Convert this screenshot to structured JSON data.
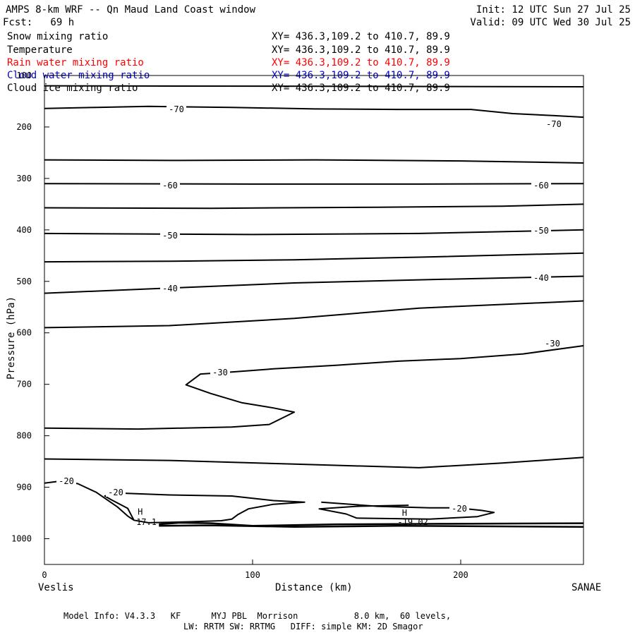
{
  "header": {
    "title": "AMPS 8-km WRF -- Qn Maud Land Coast window",
    "fcst": "Fcst:   69 h",
    "init": "Init: 12 UTC Sun 27 Jul 25",
    "valid": "Valid: 09 UTC Wed 30 Jul 25"
  },
  "fields": [
    {
      "name": "Snow mixing ratio",
      "xy": "XY= 436.3,109.2 to 410.7, 89.9",
      "color": "#000000"
    },
    {
      "name": "Temperature",
      "xy": "XY= 436.3,109.2 to 410.7, 89.9",
      "color": "#000000"
    },
    {
      "name": "Rain water mixing ratio",
      "xy": "XY= 436.3,109.2 to 410.7, 89.9",
      "color": "#ff0000"
    },
    {
      "name": "Cloud water mixing ratio",
      "xy": "XY= 436.3,109.2 to 410.7, 89.9",
      "color": "#0000cc"
    },
    {
      "name": "Cloud ice mixing ratio",
      "xy": "XY= 436.3,109.2 to 410.7, 89.9",
      "color": "#000000"
    }
  ],
  "footer": {
    "line1": "Model Info: V4.3.3   KF      MYJ PBL  Morrison           8.0 km,  60 levels,",
    "line2": "LW: RRTM SW: RRTMG   DIFF: simple KM: 2D Smagor"
  },
  "chart_data": {
    "type": "line",
    "xlabel": "Distance (km)",
    "ylabel": "Pressure (hPa)",
    "xlim": [
      0,
      259
    ],
    "ylim": [
      1050,
      100
    ],
    "x_ticks": [
      0,
      100,
      200
    ],
    "y_ticks": [
      100,
      200,
      300,
      400,
      500,
      600,
      700,
      800,
      900,
      1000
    ],
    "x_endpoints": {
      "left": "Veslis",
      "right": "SANAE"
    },
    "contours": [
      {
        "label": "",
        "points": [
          [
            0,
            120
          ],
          [
            259,
            122
          ]
        ]
      },
      {
        "label": "-70",
        "points": [
          [
            0,
            164
          ],
          [
            25,
            162
          ],
          [
            50,
            160
          ],
          [
            90,
            162
          ],
          [
            130,
            165
          ],
          [
            170,
            166
          ],
          [
            205,
            166
          ],
          [
            225,
            174
          ],
          [
            245,
            178
          ],
          [
            259,
            181
          ]
        ]
      },
      {
        "label": "",
        "points": [
          [
            0,
            264
          ],
          [
            60,
            265
          ],
          [
            130,
            264
          ],
          [
            200,
            266
          ],
          [
            259,
            270
          ]
        ]
      },
      {
        "label": "-60",
        "points": [
          [
            0,
            310
          ],
          [
            100,
            311
          ],
          [
            180,
            311
          ],
          [
            259,
            310
          ]
        ]
      },
      {
        "label": "",
        "points": [
          [
            0,
            357
          ],
          [
            80,
            358
          ],
          [
            160,
            356
          ],
          [
            220,
            354
          ],
          [
            259,
            350
          ]
        ]
      },
      {
        "label": "-50",
        "points": [
          [
            0,
            407
          ],
          [
            100,
            409
          ],
          [
            180,
            407
          ],
          [
            259,
            400
          ]
        ]
      },
      {
        "label": "",
        "points": [
          [
            0,
            462
          ],
          [
            60,
            461
          ],
          [
            120,
            458
          ],
          [
            180,
            453
          ],
          [
            259,
            445
          ]
        ]
      },
      {
        "label": "-40",
        "points": [
          [
            0,
            523
          ],
          [
            60,
            513
          ],
          [
            120,
            503
          ],
          [
            180,
            497
          ],
          [
            259,
            490
          ]
        ]
      },
      {
        "label": "",
        "points": [
          [
            0,
            590
          ],
          [
            60,
            586
          ],
          [
            120,
            572
          ],
          [
            180,
            552
          ],
          [
            259,
            538
          ]
        ]
      },
      {
        "label": "-30",
        "points": [
          [
            0,
            785
          ],
          [
            45,
            787
          ],
          [
            90,
            783
          ],
          [
            108,
            778
          ],
          [
            120,
            754
          ],
          [
            110,
            746
          ],
          [
            95,
            736
          ],
          [
            80,
            718
          ],
          [
            68,
            701
          ],
          [
            75,
            680
          ],
          [
            90,
            676
          ],
          [
            110,
            670
          ],
          [
            140,
            663
          ],
          [
            170,
            655
          ],
          [
            200,
            650
          ],
          [
            230,
            641
          ],
          [
            259,
            625
          ]
        ]
      },
      {
        "label": "",
        "points": [
          [
            0,
            845
          ],
          [
            60,
            848
          ],
          [
            120,
            855
          ],
          [
            180,
            862
          ],
          [
            220,
            853
          ],
          [
            259,
            842
          ]
        ]
      },
      {
        "label": "-20",
        "points": [
          [
            0,
            892
          ],
          [
            8,
            888
          ],
          [
            16,
            893
          ],
          [
            25,
            910
          ],
          [
            35,
            938
          ],
          [
            40,
            956
          ],
          [
            43,
            964
          ],
          [
            50,
            969
          ],
          [
            60,
            968
          ],
          [
            70,
            967
          ],
          [
            85,
            965
          ],
          [
            90,
            962
          ],
          [
            93,
            953
          ],
          [
            98,
            942
          ],
          [
            110,
            933
          ],
          [
            125,
            929
          ],
          [
            110,
            926
          ],
          [
            90,
            917
          ],
          [
            60,
            915
          ],
          [
            34,
            911
          ],
          [
            29,
            917
          ],
          [
            32,
            924
          ],
          [
            40,
            941
          ],
          [
            43,
            964
          ],
          [
            50,
            969
          ],
          [
            60,
            968
          ],
          [
            70,
            967
          ],
          [
            85,
            965
          ],
          [
            90,
            962
          ],
          [
            93,
            953
          ],
          [
            98,
            942
          ],
          [
            110,
            933
          ],
          [
            125,
            929
          ]
        ]
      },
      {
        "label": "",
        "points": [
          [
            133,
            929
          ],
          [
            160,
            937
          ],
          [
            185,
            940
          ],
          [
            198,
            940
          ],
          [
            210,
            945
          ],
          [
            216,
            949
          ],
          [
            208,
            957
          ],
          [
            185,
            962
          ],
          [
            150,
            960
          ],
          [
            145,
            952
          ],
          [
            132,
            942
          ],
          [
            150,
            937
          ],
          [
            175,
            935
          ]
        ]
      }
    ],
    "markers": [
      {
        "label": "H",
        "x": 46,
        "p": 948
      },
      {
        "label": "H",
        "x": 173,
        "p": 950
      }
    ],
    "surface_values": [
      {
        "label": "17.1",
        "x": 49,
        "p": 968
      },
      {
        "label": "-19.02",
        "x": 177,
        "p": 968
      }
    ]
  }
}
